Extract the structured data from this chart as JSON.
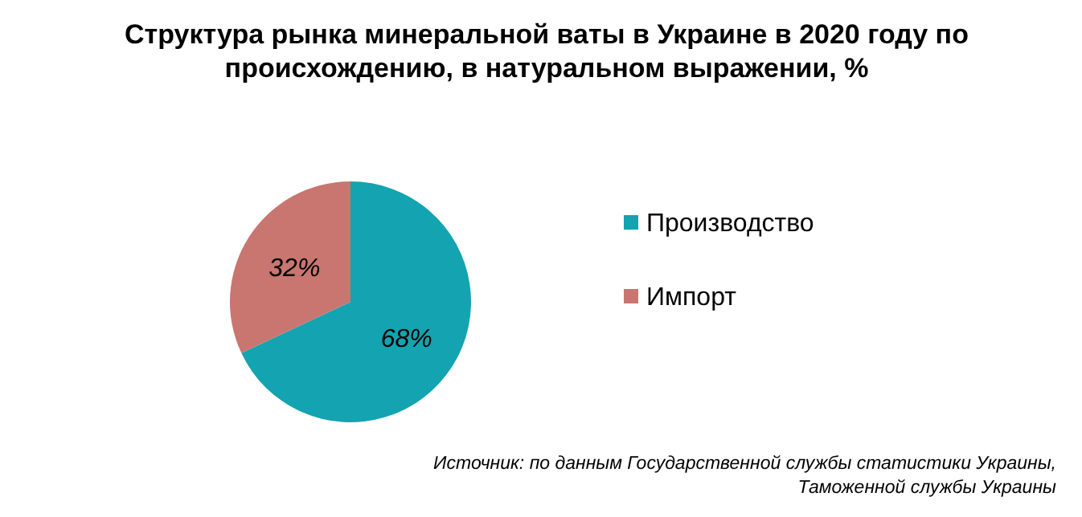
{
  "chart_data": {
    "type": "pie",
    "title": "Структура рынка минеральной ваты в Украине в 2020 году по происхождению, в натуральном выражении, %",
    "categories": [
      "Производство",
      "Импорт"
    ],
    "values": [
      68,
      32
    ],
    "colors": [
      "#14a3b0",
      "#c8766f"
    ],
    "value_labels": [
      "68%",
      "32%"
    ],
    "legend": "right",
    "annotations": [
      "Источник: по данным Государственной службы статистики Украины,",
      "Таможенной службы Украины"
    ]
  }
}
